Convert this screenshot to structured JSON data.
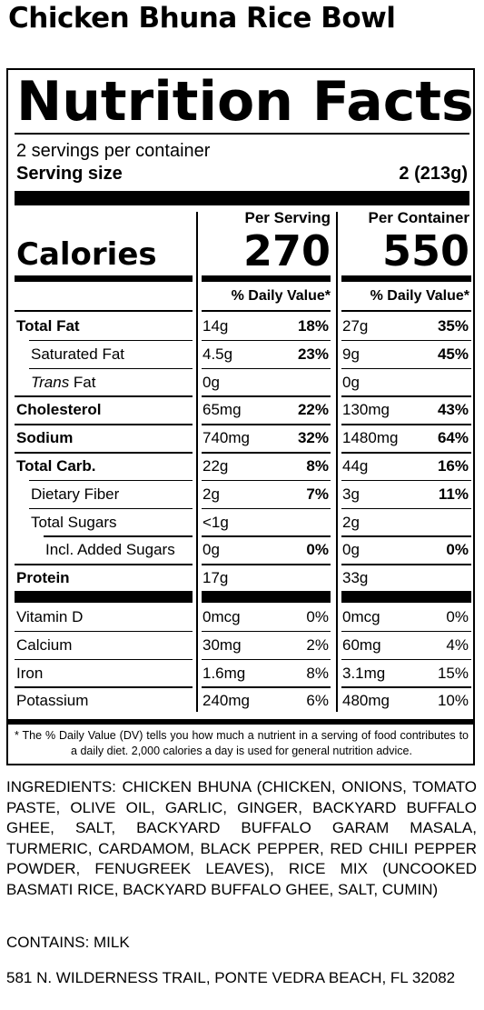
{
  "product_title": "Chicken Bhuna Rice Bowl",
  "label": {
    "heading": "Nutrition Facts",
    "servings_per_container": "2 servings per container",
    "serving_size_label": "Serving size",
    "serving_size_value": "2 (213g)",
    "per_serving_header": "Per Serving",
    "per_container_header": "Per Container",
    "calories_label": "Calories",
    "calories_per_serving": "270",
    "calories_per_container": "550",
    "daily_value_header": "% Daily Value*",
    "nutrients": [
      {
        "name": "Total Fat",
        "bold": true,
        "indent": 0,
        "serving_amount": "14g",
        "serving_dv": "18%",
        "container_amount": "27g",
        "container_dv": "35%"
      },
      {
        "name": "Saturated Fat",
        "bold": false,
        "indent": 1,
        "serving_amount": "4.5g",
        "serving_dv": "23%",
        "container_amount": "9g",
        "container_dv": "45%"
      },
      {
        "name_italic": "Trans",
        "name": " Fat",
        "bold": false,
        "indent": 1,
        "serving_amount": "0g",
        "serving_dv": "",
        "container_amount": "0g",
        "container_dv": ""
      },
      {
        "name": "Cholesterol",
        "bold": true,
        "indent": 0,
        "serving_amount": "65mg",
        "serving_dv": "22%",
        "container_amount": "130mg",
        "container_dv": "43%"
      },
      {
        "name": "Sodium",
        "bold": true,
        "indent": 0,
        "serving_amount": "740mg",
        "serving_dv": "32%",
        "container_amount": "1480mg",
        "container_dv": "64%"
      },
      {
        "name": "Total Carb.",
        "bold": true,
        "indent": 0,
        "serving_amount": "22g",
        "serving_dv": "8%",
        "container_amount": "44g",
        "container_dv": "16%"
      },
      {
        "name": "Dietary Fiber",
        "bold": false,
        "indent": 1,
        "serving_amount": "2g",
        "serving_dv": "7%",
        "container_amount": "3g",
        "container_dv": "11%"
      },
      {
        "name": "Total Sugars",
        "bold": false,
        "indent": 1,
        "serving_amount": "<1g",
        "serving_dv": "",
        "container_amount": "2g",
        "container_dv": ""
      },
      {
        "name": "Incl. Added Sugars",
        "bold": false,
        "indent": 2,
        "serving_amount": "0g",
        "serving_dv": "0%",
        "container_amount": "0g",
        "container_dv": "0%"
      },
      {
        "name": "Protein",
        "bold": true,
        "indent": 0,
        "serving_amount": "17g",
        "serving_dv": "",
        "container_amount": "33g",
        "container_dv": ""
      }
    ],
    "vitamins": [
      {
        "name": "Vitamin D",
        "serving_amount": "0mcg",
        "serving_dv": "0%",
        "container_amount": "0mcg",
        "container_dv": "0%"
      },
      {
        "name": "Calcium",
        "serving_amount": "30mg",
        "serving_dv": "2%",
        "container_amount": "60mg",
        "container_dv": "4%"
      },
      {
        "name": "Iron",
        "serving_amount": "1.6mg",
        "serving_dv": "8%",
        "container_amount": "3.1mg",
        "container_dv": "15%"
      },
      {
        "name": "Potassium",
        "serving_amount": "240mg",
        "serving_dv": "6%",
        "container_amount": "480mg",
        "container_dv": "10%"
      }
    ],
    "footnote": "* The % Daily Value (DV) tells you how much a nutrient in a serving of food contributes to a daily diet. 2,000 calories a day is used for general nutrition advice."
  },
  "ingredients": "INGREDIENTS: CHICKEN BHUNA (CHICKEN, ONIONS, TOMATO PASTE, OLIVE OIL, GARLIC, GINGER, BACKYARD BUFFALO GHEE, SALT, BACKYARD BUFFALO GARAM MASALA, TURMERIC, CARDAMOM, BLACK PEPPER, RED CHILI PEPPER POWDER, FENUGREEK LEAVES), RICE MIX (UNCOOKED BASMATI RICE, BACKYARD BUFFALO GHEE, SALT, CUMIN)",
  "contains": "CONTAINS: MILK",
  "address": "581 N. WILDERNESS TRAIL, PONTE VEDRA BEACH, FL 32082"
}
